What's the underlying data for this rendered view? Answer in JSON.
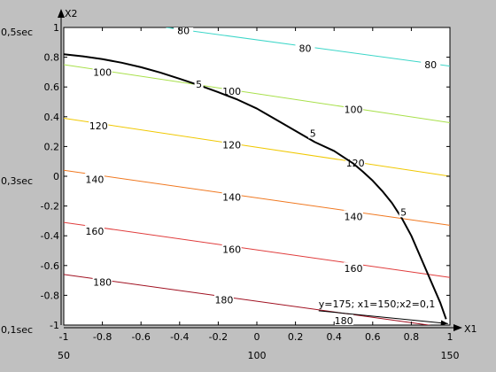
{
  "chart_data": {
    "type": "line",
    "title": "",
    "xlabel": "X1",
    "ylabel": "X2",
    "xlim": [
      -1,
      1
    ],
    "ylim": [
      -1,
      1
    ],
    "grid": false,
    "x_ticks": [
      -1,
      -0.8,
      -0.6,
      -0.4,
      -0.2,
      0,
      0.2,
      0.4,
      0.6,
      0.8,
      1
    ],
    "x_tick_labels": [
      "-1",
      "-0.8",
      "-0.6",
      "-0.4",
      "-0.2",
      "0",
      "0.2",
      "0.4",
      "0.6",
      "0.8",
      "1"
    ],
    "y_ticks": [
      -1,
      -0.8,
      -0.6,
      -0.4,
      -0.2,
      0,
      0.2,
      0.4,
      0.6,
      0.8,
      1
    ],
    "y_tick_labels": [
      "-1",
      "-0.8",
      "-0.6",
      "-0.4",
      "-0.2",
      "0",
      "0.2",
      "0.4",
      "0.6",
      "0.8",
      "1"
    ],
    "secondary_x_labels": [
      {
        "x": -1,
        "text": "50"
      },
      {
        "x": 0,
        "text": "100"
      },
      {
        "x": 1,
        "text": "150"
      }
    ],
    "secondary_y_labels": [
      {
        "y": 1,
        "text": "0,5sec"
      },
      {
        "y": 0,
        "text": "0,3sec"
      },
      {
        "y": -1,
        "text": "0,1sec"
      }
    ],
    "contours": [
      {
        "level": "80",
        "color": "#3cd6c8",
        "x": [
          -0.47,
          1
        ],
        "y": [
          1,
          0.74
        ],
        "labels": [
          {
            "x": -0.38,
            "y": 0.98
          },
          {
            "x": 0.25,
            "y": 0.86
          },
          {
            "x": 0.9,
            "y": 0.75
          }
        ]
      },
      {
        "level": "100",
        "color": "#a8e04a",
        "x": [
          -1,
          1
        ],
        "y": [
          0.75,
          0.36
        ],
        "labels": [
          {
            "x": -0.8,
            "y": 0.7
          },
          {
            "x": -0.13,
            "y": 0.57
          },
          {
            "x": 0.5,
            "y": 0.45
          }
        ]
      },
      {
        "level": "120",
        "color": "#f0c800",
        "x": [
          -1,
          1
        ],
        "y": [
          0.39,
          0.0
        ],
        "labels": [
          {
            "x": -0.82,
            "y": 0.34
          },
          {
            "x": -0.13,
            "y": 0.21
          },
          {
            "x": 0.51,
            "y": 0.09
          }
        ]
      },
      {
        "level": "140",
        "color": "#f07820",
        "x": [
          -1,
          1
        ],
        "y": [
          0.04,
          -0.33
        ],
        "labels": [
          {
            "x": -0.84,
            "y": -0.02
          },
          {
            "x": -0.13,
            "y": -0.14
          },
          {
            "x": 0.5,
            "y": -0.27
          }
        ]
      },
      {
        "level": "160",
        "color": "#e03c3c",
        "x": [
          -1,
          1
        ],
        "y": [
          -0.31,
          -0.68
        ],
        "labels": [
          {
            "x": -0.84,
            "y": -0.37
          },
          {
            "x": -0.13,
            "y": -0.49
          },
          {
            "x": 0.5,
            "y": -0.62
          }
        ]
      },
      {
        "level": "180",
        "color": "#a01020",
        "x": [
          -1,
          1
        ],
        "y": [
          -0.66,
          -1.02
        ],
        "labels": [
          {
            "x": -0.8,
            "y": -0.71
          },
          {
            "x": -0.17,
            "y": -0.83
          },
          {
            "x": 0.45,
            "y": -0.97
          }
        ]
      }
    ],
    "boundary_curve": {
      "level": "5",
      "color": "#000000",
      "x": [
        -1.0,
        -0.9,
        -0.8,
        -0.7,
        -0.6,
        -0.5,
        -0.4,
        -0.3,
        -0.2,
        -0.1,
        0.0,
        0.1,
        0.2,
        0.3,
        0.4,
        0.5,
        0.55,
        0.6,
        0.65,
        0.7,
        0.75,
        0.8,
        0.85,
        0.9,
        0.95,
        0.98
      ],
      "y": [
        0.82,
        0.806,
        0.787,
        0.763,
        0.733,
        0.697,
        0.655,
        0.612,
        0.565,
        0.515,
        0.455,
        0.38,
        0.305,
        0.23,
        0.17,
        0.085,
        0.03,
        -0.03,
        -0.1,
        -0.18,
        -0.28,
        -0.4,
        -0.55,
        -0.7,
        -0.85,
        -0.96
      ],
      "labels": [
        {
          "x": -0.3,
          "y": 0.62
        },
        {
          "x": 0.29,
          "y": 0.29
        },
        {
          "x": 0.76,
          "y": -0.24
        }
      ]
    },
    "annotation": {
      "text": "y=175;  x1=150;x2=0,1",
      "text_x": 0.32,
      "text_y": -0.88,
      "arrow_to": [
        0.99,
        -0.99
      ]
    }
  }
}
